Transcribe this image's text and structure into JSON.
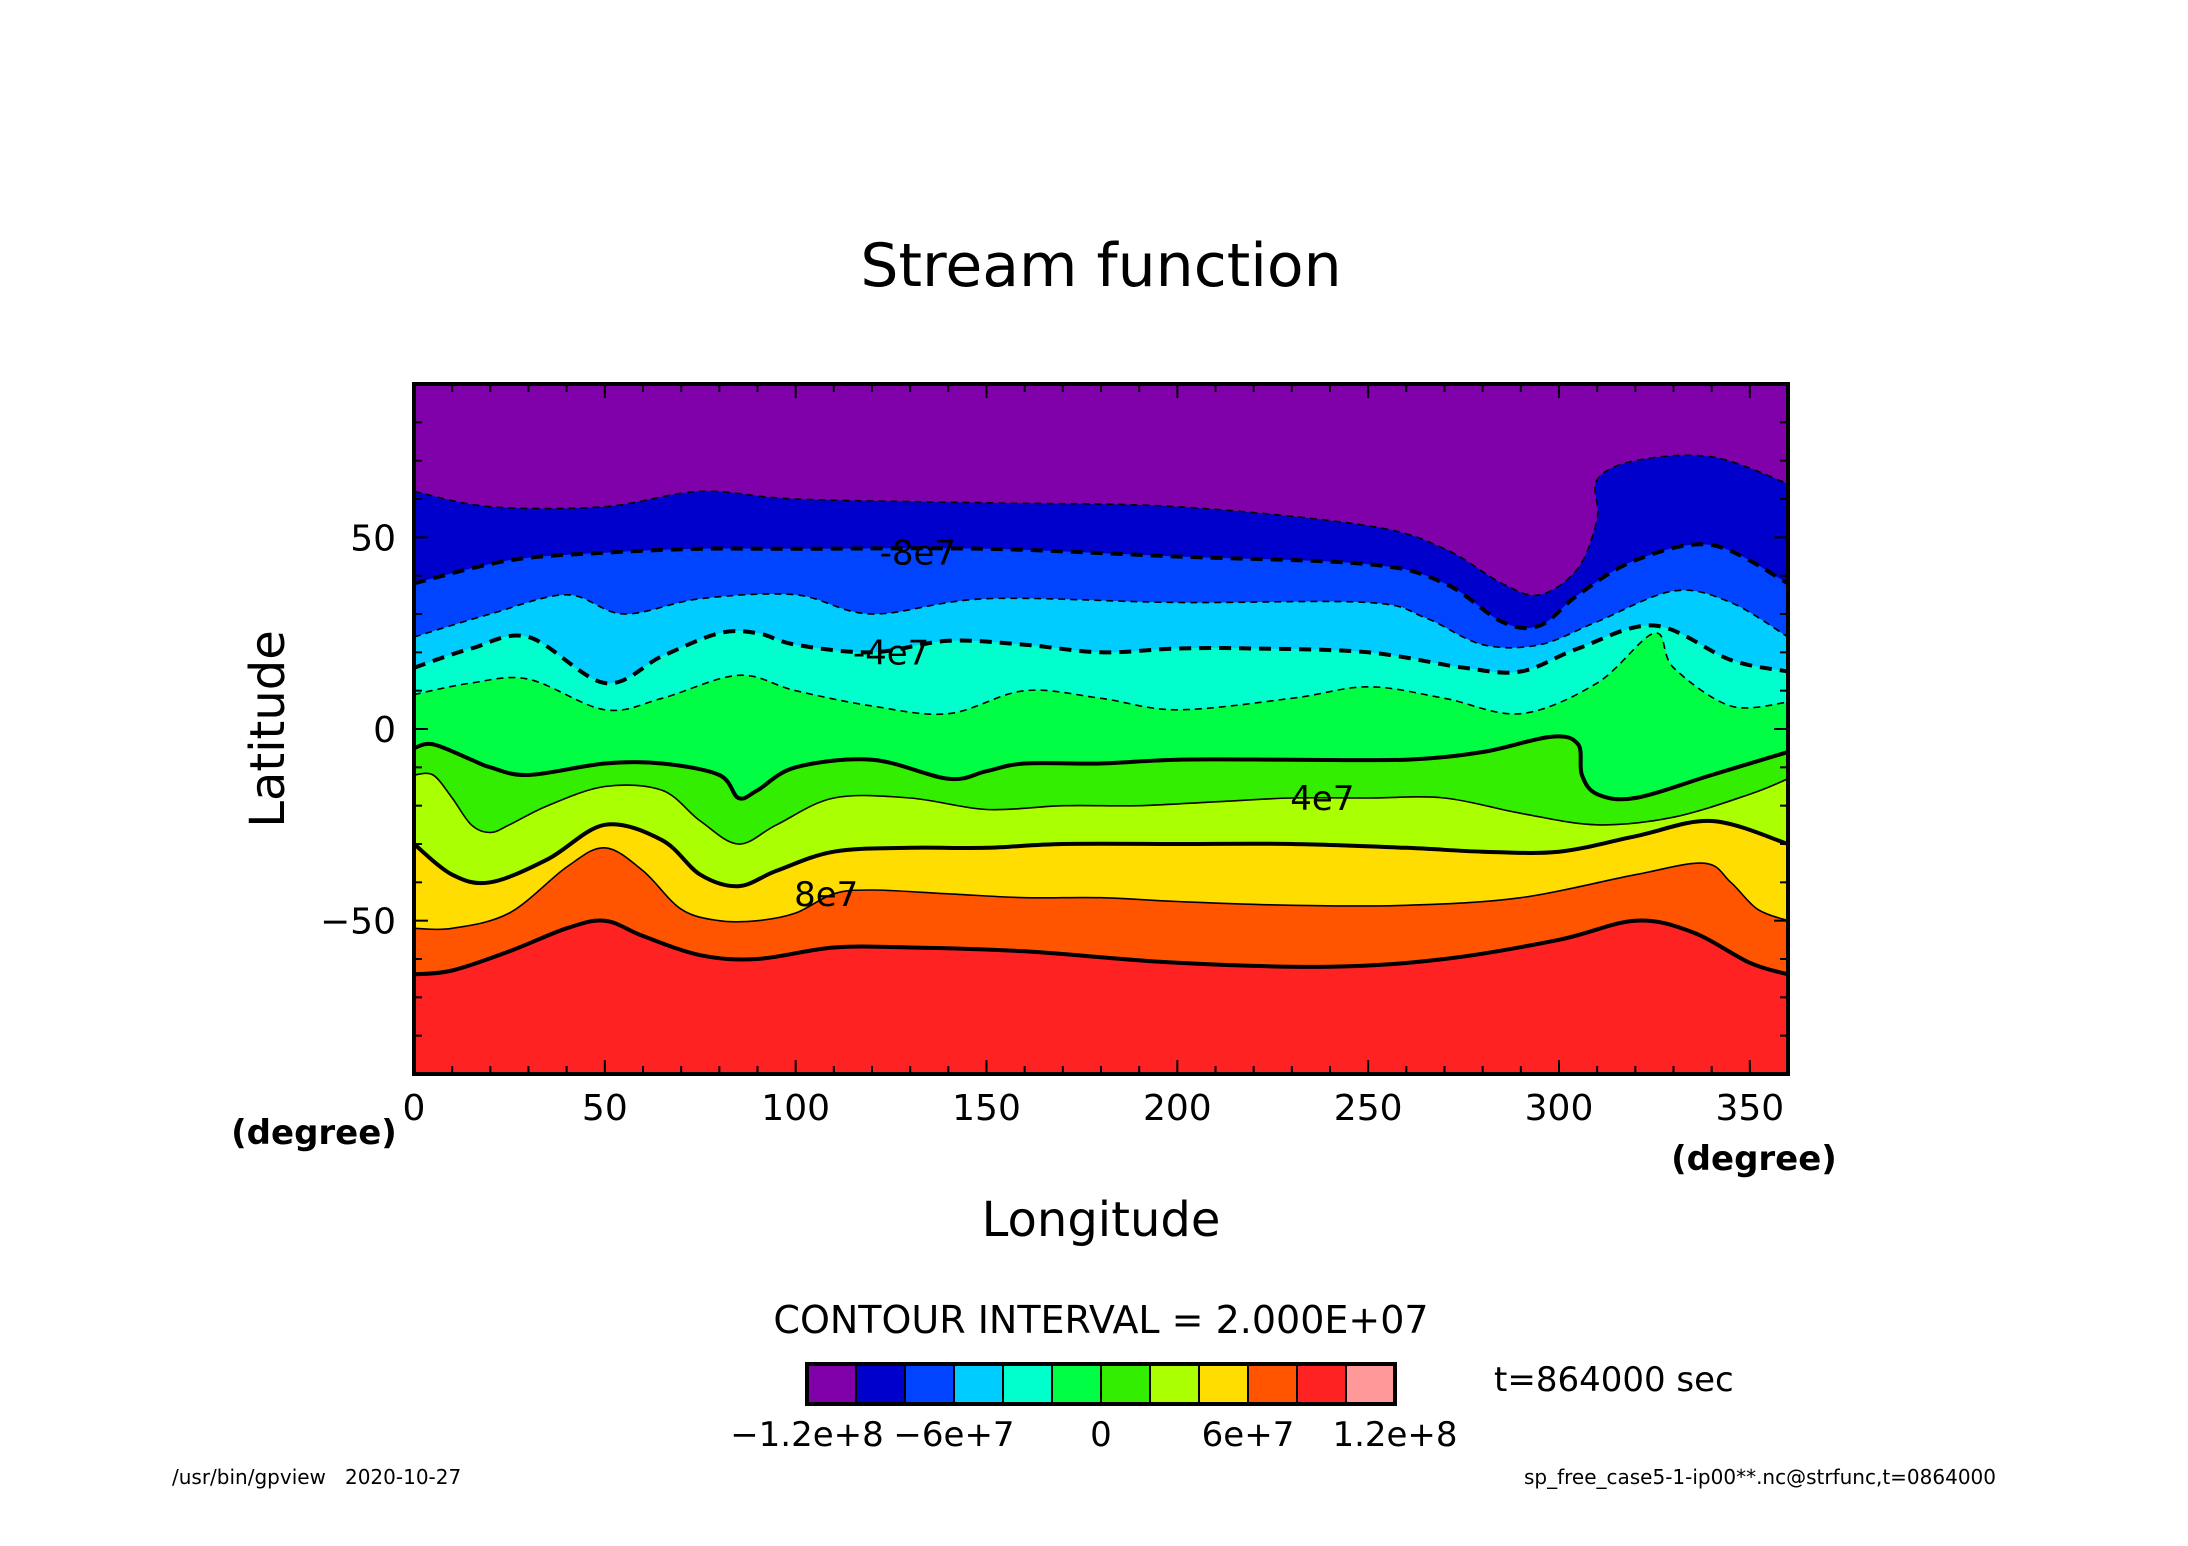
{
  "chart_data": {
    "type": "contour",
    "title": "Stream function",
    "xlabel": "Longitude",
    "ylabel": "Latitude",
    "x_unit": "(degree)",
    "y_unit": "(degree)",
    "xlim": [
      0,
      360
    ],
    "ylim": [
      -90,
      90
    ],
    "xticks": [
      0,
      50,
      100,
      150,
      200,
      250,
      300,
      350
    ],
    "yticks": [
      -50,
      0,
      50
    ],
    "contour_interval_label": "CONTOUR INTERVAL = 2.000E+07",
    "time_label": "t=864000 sec",
    "footer_left": "/usr/bin/gpview   2020-10-27",
    "footer_right": "sp_free_case5-1-ip00**.nc@strfunc,t=0864000",
    "levels": [
      -120000000.0,
      -100000000.0,
      -80000000.0,
      -60000000.0,
      -40000000.0,
      -20000000.0,
      0,
      20000000.0,
      40000000.0,
      60000000.0,
      80000000.0,
      100000000.0,
      120000000.0
    ],
    "colorbar": {
      "colors": [
        "#8000aa",
        "#0000cc",
        "#0044ff",
        "#00ccff",
        "#00ffcc",
        "#00ff44",
        "#33ee00",
        "#aaff00",
        "#ffdd00",
        "#ff5500",
        "#ff2222",
        "#ff9999"
      ],
      "labels": [
        "-1.2e+8",
        "-6e+7",
        "0",
        "6e+7",
        "1.2e+8"
      ],
      "label_values": [
        -120000000.0,
        -60000000.0,
        0,
        60000000.0,
        120000000.0
      ]
    },
    "contour_labels": [
      {
        "text": "-8e7",
        "lon": 132,
        "lat": 46
      },
      {
        "text": "-4e7",
        "lon": 125,
        "lat": 20
      },
      {
        "text": "4e7",
        "lon": 238,
        "lat": -18
      },
      {
        "text": "8e7",
        "lon": 108,
        "lat": -43
      }
    ],
    "contours": [
      {
        "level": -100000000.0,
        "lon": [
          0,
          20,
          50,
          75,
          100,
          150,
          200,
          250,
          270,
          285,
          295,
          305,
          310,
          310,
          320,
          340,
          360
        ],
        "lat": [
          62,
          58,
          58,
          62,
          60,
          59,
          58,
          53,
          47,
          38,
          35,
          42,
          55,
          65,
          70,
          71,
          64
        ]
      },
      {
        "level": -80000000.0,
        "lon": [
          0,
          25,
          50,
          75,
          100,
          150,
          200,
          250,
          270,
          285,
          295,
          305,
          320,
          340,
          360
        ],
        "lat": [
          38,
          44,
          46,
          47,
          47,
          47,
          45,
          43,
          38,
          28,
          27,
          35,
          44,
          48,
          38
        ]
      },
      {
        "level": -60000000.0,
        "lon": [
          0,
          20,
          40,
          55,
          75,
          100,
          120,
          150,
          200,
          250,
          265,
          280,
          295,
          310,
          330,
          345,
          360
        ],
        "lat": [
          24,
          30,
          35,
          30,
          34,
          35,
          30,
          34,
          33,
          33,
          29,
          22,
          22,
          28,
          36,
          33,
          24
        ]
      },
      {
        "level": -40000000.0,
        "lon": [
          0,
          15,
          30,
          50,
          65,
          80,
          90,
          100,
          120,
          140,
          160,
          180,
          200,
          220,
          250,
          275,
          290,
          305,
          325,
          345,
          360
        ],
        "lat": [
          16,
          21,
          24,
          12,
          19,
          25,
          25,
          22,
          20,
          23,
          22,
          20,
          21,
          21,
          20,
          16,
          15,
          21,
          27,
          18,
          15
        ]
      },
      {
        "level": -20000000.0,
        "lon": [
          0,
          15,
          30,
          50,
          65,
          85,
          100,
          120,
          140,
          160,
          180,
          200,
          230,
          250,
          270,
          290,
          310,
          325,
          330,
          345,
          360
        ],
        "lat": [
          9,
          12,
          13,
          5,
          8,
          14,
          10,
          6,
          4,
          10,
          8,
          5,
          8,
          11,
          8,
          4,
          12,
          25,
          16,
          6,
          7
        ]
      },
      {
        "level": 0,
        "lon": [
          0,
          5,
          15,
          20,
          30,
          50,
          65,
          80,
          85,
          90,
          100,
          120,
          140,
          150,
          160,
          180,
          200,
          230,
          260,
          280,
          298,
          305,
          306,
          310,
          320,
          340,
          360
        ],
        "lat": [
          -5,
          -4,
          -8,
          -10,
          -12,
          -9,
          -9,
          -12,
          -18,
          -16,
          -10,
          -8,
          -13,
          -11,
          -9,
          -9,
          -8,
          -8,
          -8,
          -6,
          -2,
          -4,
          -12,
          -17,
          -18,
          -12,
          -6
        ]
      },
      {
        "level": 20000000.0,
        "lon": [
          0,
          5,
          10,
          15,
          20,
          25,
          35,
          50,
          65,
          75,
          85,
          95,
          110,
          130,
          150,
          170,
          190,
          210,
          230,
          250,
          270,
          290,
          310,
          330,
          350,
          360
        ],
        "lat": [
          -12,
          -12,
          -18,
          -25,
          -27,
          -25,
          -20,
          -15,
          -16,
          -24,
          -30,
          -25,
          -18,
          -18,
          -21,
          -20,
          -20,
          -19,
          -18,
          -18,
          -18,
          -22,
          -25,
          -23,
          -17,
          -13
        ]
      },
      {
        "level": 40000000.0,
        "lon": [
          0,
          10,
          20,
          35,
          50,
          65,
          75,
          85,
          95,
          110,
          130,
          150,
          170,
          200,
          230,
          260,
          280,
          300,
          320,
          340,
          360
        ],
        "lat": [
          -30,
          -38,
          -40,
          -34,
          -25,
          -29,
          -38,
          -41,
          -37,
          -32,
          -31,
          -31,
          -30,
          -30,
          -30,
          -31,
          -32,
          -32,
          -28,
          -24,
          -30
        ]
      },
      {
        "level": 60000000.0,
        "lon": [
          0,
          10,
          25,
          40,
          50,
          60,
          70,
          80,
          90,
          100,
          110,
          120,
          140,
          160,
          180,
          200,
          230,
          260,
          290,
          320,
          338,
          345,
          352,
          360
        ],
        "lat": [
          -52,
          -52,
          -48,
          -36,
          -31,
          -37,
          -47,
          -50,
          -50,
          -48,
          -43,
          -42,
          -43,
          -44,
          -44,
          -45,
          -46,
          -46,
          -44,
          -38,
          -35,
          -40,
          -47,
          -50
        ]
      },
      {
        "level": 80000000.0,
        "lon": [
          0,
          10,
          25,
          40,
          50,
          60,
          75,
          90,
          110,
          130,
          160,
          200,
          240,
          270,
          300,
          320,
          335,
          350,
          360
        ],
        "lat": [
          -64,
          -63,
          -58,
          -52,
          -50,
          -54,
          -59,
          -60,
          -57,
          -57,
          -58,
          -61,
          -62,
          -60,
          -55,
          -50,
          -53,
          -61,
          -64
        ]
      }
    ]
  }
}
